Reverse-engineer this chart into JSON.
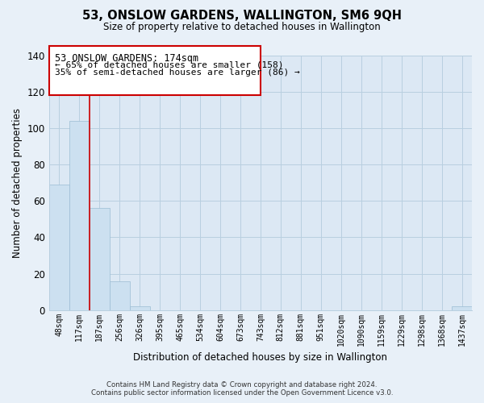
{
  "title": "53, ONSLOW GARDENS, WALLINGTON, SM6 9QH",
  "subtitle": "Size of property relative to detached houses in Wallington",
  "xlabel": "Distribution of detached houses by size in Wallington",
  "ylabel": "Number of detached properties",
  "bar_labels": [
    "48sqm",
    "117sqm",
    "187sqm",
    "256sqm",
    "326sqm",
    "395sqm",
    "465sqm",
    "534sqm",
    "604sqm",
    "673sqm",
    "743sqm",
    "812sqm",
    "881sqm",
    "951sqm",
    "1020sqm",
    "1090sqm",
    "1159sqm",
    "1229sqm",
    "1298sqm",
    "1368sqm",
    "1437sqm"
  ],
  "bar_values": [
    69,
    104,
    56,
    16,
    2,
    0,
    0,
    0,
    0,
    0,
    0,
    0,
    0,
    0,
    0,
    0,
    0,
    0,
    0,
    0,
    2
  ],
  "bar_color": "#cce0f0",
  "bar_edge_color": "#9bbdd4",
  "marker_color": "#cc0000",
  "annotation_line1": "53 ONSLOW GARDENS: 174sqm",
  "annotation_line2": "← 65% of detached houses are smaller (158)",
  "annotation_line3": "35% of semi-detached houses are larger (86) →",
  "ylim": [
    0,
    140
  ],
  "yticks": [
    0,
    20,
    40,
    60,
    80,
    100,
    120,
    140
  ],
  "footer_line1": "Contains HM Land Registry data © Crown copyright and database right 2024.",
  "footer_line2": "Contains public sector information licensed under the Open Government Licence v3.0.",
  "bg_color": "#e8f0f8",
  "plot_bg_color": "#dce8f4",
  "grid_color": "#b8cfe0"
}
